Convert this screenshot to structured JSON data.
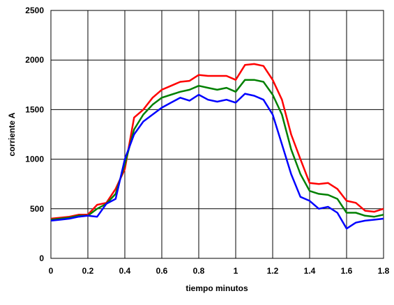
{
  "chart_data": {
    "type": "line",
    "x_label": "tiempo minutos",
    "y_label": "corriente A",
    "x": [
      0,
      0.05,
      0.1,
      0.15,
      0.2,
      0.25,
      0.3,
      0.35,
      0.4,
      0.45,
      0.5,
      0.55,
      0.6,
      0.65,
      0.7,
      0.75,
      0.8,
      0.85,
      0.9,
      0.95,
      1.0,
      1.05,
      1.1,
      1.15,
      1.2,
      1.25,
      1.3,
      1.35,
      1.4,
      1.45,
      1.5,
      1.55,
      1.6,
      1.65,
      1.7,
      1.75,
      1.8
    ],
    "series": [
      {
        "color": "#ff0000",
        "values": [
          400,
          410,
          420,
          440,
          440,
          540,
          560,
          700,
          900,
          1420,
          1500,
          1620,
          1700,
          1740,
          1780,
          1790,
          1850,
          1840,
          1840,
          1840,
          1800,
          1950,
          1960,
          1940,
          1800,
          1600,
          1250,
          1000,
          760,
          750,
          760,
          700,
          580,
          560,
          480,
          470,
          500
        ]
      },
      {
        "color": "#008000",
        "values": [
          390,
          400,
          410,
          430,
          430,
          500,
          550,
          650,
          950,
          1300,
          1450,
          1550,
          1620,
          1650,
          1680,
          1700,
          1740,
          1720,
          1700,
          1720,
          1680,
          1800,
          1800,
          1780,
          1650,
          1450,
          1100,
          850,
          680,
          650,
          640,
          600,
          460,
          460,
          430,
          420,
          440
        ]
      },
      {
        "color": "#0000ff",
        "values": [
          380,
          390,
          400,
          420,
          430,
          420,
          550,
          600,
          1000,
          1250,
          1380,
          1450,
          1520,
          1570,
          1620,
          1590,
          1650,
          1600,
          1580,
          1600,
          1570,
          1660,
          1640,
          1600,
          1450,
          1150,
          850,
          620,
          580,
          500,
          520,
          460,
          300,
          360,
          380,
          390,
          400
        ]
      }
    ],
    "xlim": [
      0,
      1.8
    ],
    "xticks": [
      0,
      0.2,
      0.4,
      0.6,
      0.8,
      1,
      1.2,
      1.4,
      1.6,
      1.8
    ],
    "ylim": [
      0,
      2500
    ],
    "yticks": [
      0,
      500,
      1000,
      1500,
      2000,
      2500
    ],
    "grid": true
  }
}
